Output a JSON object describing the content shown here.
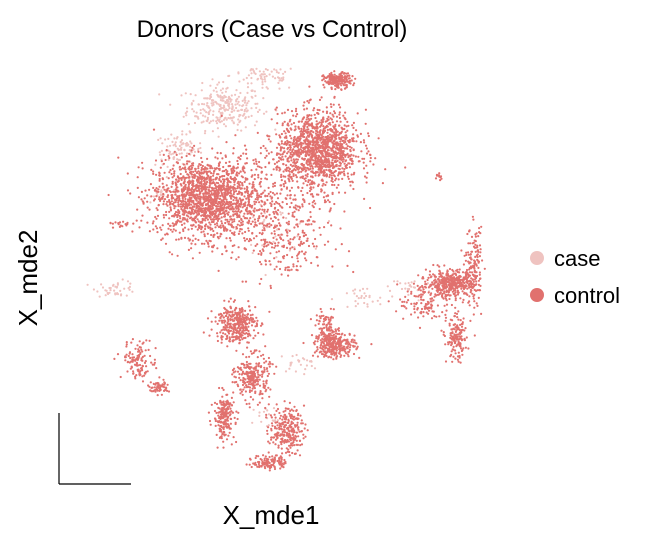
{
  "chart_data": {
    "type": "scatter",
    "title": "Donors (Case vs Control)",
    "xlabel": "X_mde1",
    "ylabel": "X_mde2",
    "axes": "scale-bar",
    "grid": false,
    "legend_position": "right",
    "series": [
      {
        "name": "case",
        "color": "#efc3c0",
        "regions": [
          {
            "cx": 2.9,
            "cy": 6.8,
            "rx": 0.55,
            "ry": 0.35,
            "n": 260
          },
          {
            "cx": 2.1,
            "cy": 6.0,
            "rx": 0.35,
            "ry": 0.25,
            "n": 90
          },
          {
            "cx": 3.6,
            "cy": 7.4,
            "rx": 0.5,
            "ry": 0.25,
            "n": 90
          },
          {
            "cx": 1.8,
            "cy": 5.2,
            "rx": 0.15,
            "ry": 0.12,
            "n": 20
          },
          {
            "cx": 1.0,
            "cy": 3.4,
            "rx": 0.3,
            "ry": 0.12,
            "n": 40
          },
          {
            "cx": 3.8,
            "cy": 4.5,
            "rx": 0.5,
            "ry": 0.35,
            "n": 40
          },
          {
            "cx": 4.2,
            "cy": 2.0,
            "rx": 0.3,
            "ry": 0.15,
            "n": 25
          },
          {
            "cx": 5.3,
            "cy": 3.2,
            "rx": 0.4,
            "ry": 0.2,
            "n": 30
          },
          {
            "cx": 6.2,
            "cy": 3.4,
            "rx": 0.3,
            "ry": 0.2,
            "n": 25
          },
          {
            "cx": 3.7,
            "cy": 1.0,
            "rx": 0.3,
            "ry": 0.2,
            "n": 20
          }
        ]
      },
      {
        "name": "control",
        "color": "#e1716e",
        "regions": [
          {
            "cx": 2.55,
            "cy": 5.1,
            "rx": 0.75,
            "ry": 0.6,
            "n": 1500
          },
          {
            "cx": 4.55,
            "cy": 6.0,
            "rx": 0.6,
            "ry": 0.6,
            "n": 1300
          },
          {
            "cx": 4.9,
            "cy": 7.3,
            "rx": 0.2,
            "ry": 0.12,
            "n": 200
          },
          {
            "cx": 3.6,
            "cy": 5.0,
            "rx": 1.0,
            "ry": 0.9,
            "n": 400
          },
          {
            "cx": 6.9,
            "cy": 3.5,
            "rx": 0.35,
            "ry": 0.2,
            "n": 400
          },
          {
            "cx": 6.45,
            "cy": 3.15,
            "rx": 0.4,
            "ry": 0.35,
            "n": 120
          },
          {
            "cx": 7.3,
            "cy": 3.8,
            "rx": 0.12,
            "ry": 0.6,
            "n": 150
          },
          {
            "cx": 7.0,
            "cy": 2.45,
            "rx": 0.15,
            "ry": 0.35,
            "n": 150
          },
          {
            "cx": 4.85,
            "cy": 2.35,
            "rx": 0.3,
            "ry": 0.2,
            "n": 300
          },
          {
            "cx": 4.7,
            "cy": 2.65,
            "rx": 0.15,
            "ry": 0.25,
            "n": 80
          },
          {
            "cx": 3.1,
            "cy": 2.75,
            "rx": 0.3,
            "ry": 0.3,
            "n": 350
          },
          {
            "cx": 3.4,
            "cy": 1.75,
            "rx": 0.25,
            "ry": 0.35,
            "n": 250
          },
          {
            "cx": 2.9,
            "cy": 1.0,
            "rx": 0.15,
            "ry": 0.35,
            "n": 200
          },
          {
            "cx": 4.0,
            "cy": 0.75,
            "rx": 0.25,
            "ry": 0.35,
            "n": 250
          },
          {
            "cx": 3.7,
            "cy": 0.15,
            "rx": 0.25,
            "ry": 0.12,
            "n": 120
          },
          {
            "cx": 1.4,
            "cy": 2.05,
            "rx": 0.25,
            "ry": 0.3,
            "n": 120
          },
          {
            "cx": 1.75,
            "cy": 1.55,
            "rx": 0.15,
            "ry": 0.1,
            "n": 60
          },
          {
            "cx": 1.05,
            "cy": 4.6,
            "rx": 0.15,
            "ry": 0.05,
            "n": 15
          },
          {
            "cx": 6.7,
            "cy": 5.5,
            "rx": 0.05,
            "ry": 0.06,
            "n": 12
          },
          {
            "cx": 3.9,
            "cy": 4.2,
            "rx": 0.7,
            "ry": 0.6,
            "n": 150
          }
        ]
      }
    ]
  }
}
